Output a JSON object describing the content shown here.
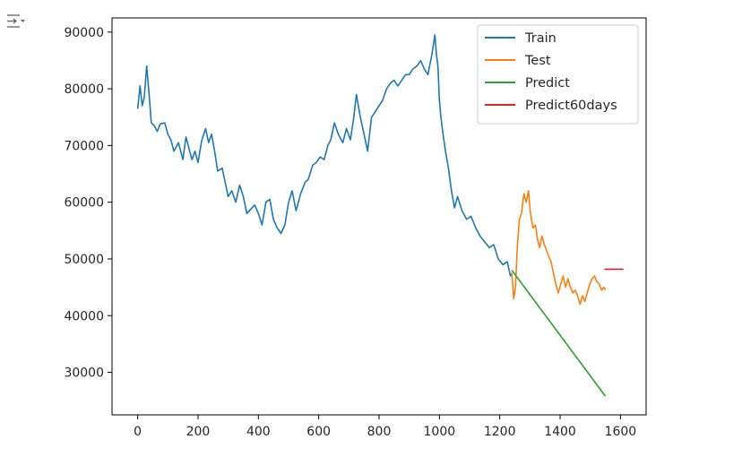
{
  "notebook": {
    "output_toggle_icon": "output-collapse-icon"
  },
  "chart_data": {
    "type": "line",
    "title": "",
    "xlabel": "",
    "ylabel": "",
    "xlim": [
      -85,
      1685
    ],
    "ylim": [
      22500,
      92500
    ],
    "x_ticks": [
      0,
      200,
      400,
      600,
      800,
      1000,
      1200,
      1400,
      1600
    ],
    "y_ticks": [
      30000,
      40000,
      50000,
      60000,
      70000,
      80000,
      90000
    ],
    "grid": false,
    "legend_position": "top-right",
    "series": [
      {
        "name": "Train",
        "color": "#1f77b4",
        "x": [
          0,
          8,
          15,
          22,
          30,
          38,
          45,
          55,
          65,
          75,
          90,
          100,
          110,
          120,
          135,
          150,
          160,
          170,
          180,
          190,
          200,
          212,
          225,
          235,
          245,
          255,
          265,
          280,
          290,
          300,
          312,
          325,
          338,
          350,
          362,
          375,
          388,
          400,
          412,
          425,
          438,
          450,
          462,
          475,
          488,
          500,
          512,
          525,
          540,
          555,
          565,
          580,
          592,
          605,
          618,
          630,
          640,
          652,
          665,
          680,
          692,
          705,
          715,
          725,
          738,
          750,
          762,
          775,
          788,
          800,
          812,
          825,
          838,
          850,
          862,
          875,
          888,
          900,
          912,
          925,
          938,
          950,
          962,
          975,
          985,
          990,
          995,
          1000,
          1005,
          1012,
          1020,
          1030,
          1040,
          1050,
          1060,
          1075,
          1090,
          1105,
          1120,
          1135,
          1150,
          1165,
          1180,
          1195,
          1210,
          1225,
          1235,
          1240
        ],
        "y": [
          76500,
          80500,
          77000,
          78500,
          84000,
          79000,
          74000,
          73500,
          72500,
          73800,
          74000,
          72000,
          71000,
          69000,
          70500,
          67500,
          71500,
          69500,
          67500,
          69000,
          67000,
          70800,
          73000,
          70500,
          72000,
          69000,
          65500,
          66000,
          63500,
          61000,
          62000,
          60000,
          63000,
          61000,
          58000,
          58800,
          59500,
          58000,
          56000,
          60000,
          60500,
          57000,
          55500,
          54500,
          56000,
          60000,
          62000,
          58500,
          61500,
          63500,
          64000,
          66500,
          67000,
          68000,
          67500,
          70000,
          71000,
          74000,
          72000,
          70500,
          73000,
          71000,
          74500,
          79000,
          75000,
          72000,
          69000,
          75000,
          76000,
          77000,
          78000,
          80000,
          81000,
          81500,
          80500,
          81500,
          82500,
          82500,
          83500,
          84000,
          85000,
          83500,
          82500,
          86000,
          89500,
          86000,
          84000,
          78000,
          75000,
          72000,
          69000,
          66000,
          62000,
          59000,
          61000,
          58500,
          57000,
          57500,
          55500,
          54000,
          53000,
          52000,
          52500,
          50000,
          49000,
          49500,
          47000,
          47500
        ]
      },
      {
        "name": "Test",
        "color": "#ff7f0e",
        "x": [
          1240,
          1246,
          1252,
          1258,
          1265,
          1272,
          1280,
          1288,
          1295,
          1302,
          1310,
          1318,
          1325,
          1332,
          1340,
          1348,
          1355,
          1362,
          1370,
          1378,
          1386,
          1394,
          1402,
          1410,
          1418,
          1426,
          1434,
          1442,
          1450,
          1458,
          1466,
          1474,
          1482,
          1490,
          1498,
          1506,
          1514,
          1522,
          1530,
          1538,
          1545,
          1550
        ],
        "y": [
          47500,
          43000,
          45000,
          52000,
          57000,
          58000,
          61500,
          60000,
          62000,
          58000,
          55500,
          56000,
          53500,
          52000,
          54000,
          52500,
          51500,
          50500,
          49500,
          47500,
          45500,
          44000,
          45500,
          47000,
          45000,
          46500,
          45000,
          44000,
          44500,
          43500,
          42000,
          43500,
          42500,
          44000,
          45500,
          46500,
          47000,
          46000,
          45500,
          44500,
          45000,
          44500
        ]
      },
      {
        "name": "Predict",
        "color": "#2ca02c",
        "x": [
          1240,
          1550
        ],
        "y": [
          48000,
          25800
        ]
      },
      {
        "name": "Predict60days",
        "color": "#d62728",
        "x": [
          1547,
          1610
        ],
        "y": [
          48200,
          48200
        ]
      }
    ]
  }
}
